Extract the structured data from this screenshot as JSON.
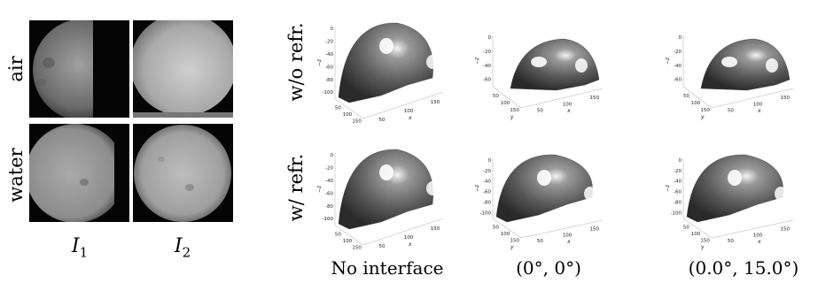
{
  "left_block": {
    "row_labels": [
      "air",
      "water"
    ],
    "col_labels": [
      {
        "base": "I",
        "sub": "1"
      },
      {
        "base": "I",
        "sub": "2"
      }
    ]
  },
  "right_block": {
    "row_labels": [
      "w/o refr.",
      "w/  refr."
    ],
    "captions": [
      "No interface",
      "(0°, 0°)",
      "(0.0°, 15.0°)"
    ],
    "axis_titles": {
      "z": "−z",
      "x": "x",
      "y": "y"
    },
    "z_ticks_main": [
      "0",
      "-20",
      "-40",
      "-60",
      "-80",
      "-100"
    ],
    "z_ticks_small_top": [
      "0",
      "-20",
      "-40",
      "-60"
    ],
    "xy_ticks": [
      "50",
      "100",
      "150"
    ]
  }
}
